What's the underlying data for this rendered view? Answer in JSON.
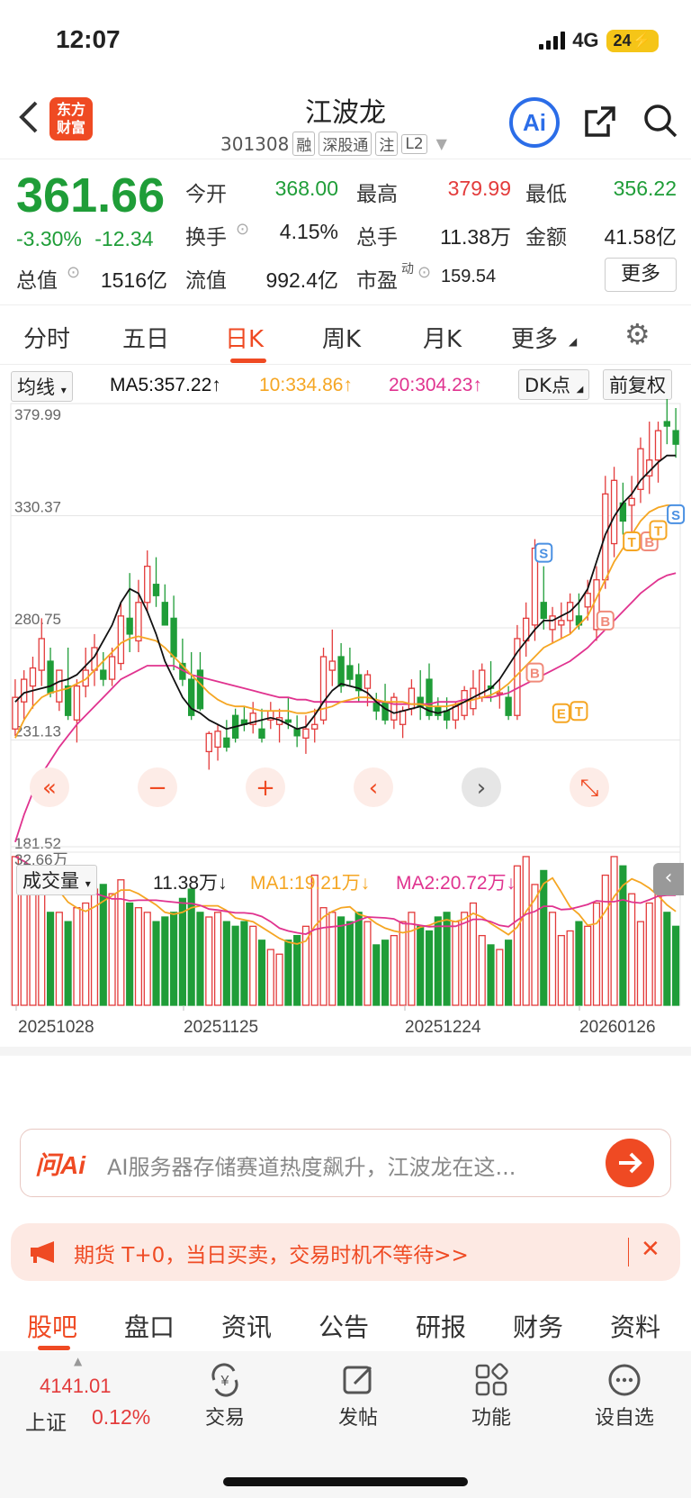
{
  "status": {
    "time": "12:07",
    "network": "4G",
    "battery": "24"
  },
  "header": {
    "logo_line1": "东方",
    "logo_line2": "财富",
    "stock_name": "江波龙",
    "stock_code": "301308",
    "tags": [
      "融",
      "深股通",
      "注",
      "L2"
    ],
    "ai_label": "Ai"
  },
  "quote": {
    "price": "361.66",
    "change_pct": "-3.30%",
    "change": "-12.34",
    "open_label": "今开",
    "open": "368.00",
    "high_label": "最高",
    "high": "379.99",
    "low_label": "最低",
    "low": "356.22",
    "turnover_label": "换手",
    "turnover": "4.15%",
    "volume_label": "总手",
    "volume": "11.38万",
    "amount_label": "金额",
    "amount": "41.58亿",
    "mktcap_label": "总值",
    "mktcap": "1516亿",
    "float_label": "流值",
    "float_cap": "992.4亿",
    "pe_label": "市盈",
    "pe_sup": "动",
    "pe": "159.54",
    "more_label": "更多"
  },
  "period_tabs": [
    "分时",
    "五日",
    "日K",
    "周K",
    "月K",
    "更多"
  ],
  "indicators": {
    "ma_select": "均线",
    "ma5": "MA5:357.22↑",
    "ma10": "10:334.86↑",
    "ma20": "20:304.23↑",
    "dk_select": "DK点",
    "adjust": "前复权",
    "vol_select": "成交量",
    "vol_value": "11.38万↓",
    "vma1": "MA1:19.21万↓",
    "vma2": "MA2:20.72万↓"
  },
  "colors": {
    "up": "#e33b3b",
    "down": "#1f9d38",
    "accent": "#ef4a23",
    "ma5": "#111111",
    "ma10": "#f5a623",
    "ma20": "#e0338f"
  },
  "chart_data": {
    "type": "candlestick",
    "price_axis_labels": [
      "379.99",
      "330.37",
      "280.75",
      "231.13",
      "181.52"
    ],
    "ylim": [
      181.52,
      379.99
    ],
    "x_labels": [
      "20251028",
      "20251125",
      "20251224",
      "20260126"
    ],
    "volume_max_label": "32.66万",
    "candles": [
      [
        236,
        258,
        233,
        250
      ],
      [
        248,
        262,
        240,
        258
      ],
      [
        255,
        268,
        245,
        263
      ],
      [
        262,
        285,
        255,
        276
      ],
      [
        266,
        272,
        250,
        252
      ],
      [
        248,
        262,
        244,
        262
      ],
      [
        255,
        272,
        240,
        242
      ],
      [
        240,
        258,
        230,
        255
      ],
      [
        255,
        272,
        250,
        262
      ],
      [
        262,
        278,
        255,
        272
      ],
      [
        262,
        270,
        255,
        258
      ],
      [
        258,
        272,
        255,
        268
      ],
      [
        265,
        292,
        262,
        286
      ],
      [
        285,
        305,
        270,
        278
      ],
      [
        275,
        302,
        270,
        292
      ],
      [
        292,
        315,
        288,
        308
      ],
      [
        300,
        312,
        290,
        295
      ],
      [
        292,
        300,
        282,
        282
      ],
      [
        285,
        295,
        262,
        268
      ],
      [
        265,
        276,
        255,
        258
      ],
      [
        258,
        270,
        240,
        242
      ],
      [
        262,
        270,
        244,
        245
      ],
      [
        226,
        235,
        218,
        234
      ],
      [
        228,
        238,
        222,
        235
      ],
      [
        232,
        240,
        226,
        228
      ],
      [
        242,
        245,
        230,
        232
      ],
      [
        240,
        246,
        235,
        238
      ],
      [
        238,
        248,
        234,
        243
      ],
      [
        236,
        245,
        230,
        232
      ],
      [
        240,
        248,
        236,
        244
      ],
      [
        238,
        245,
        230,
        241
      ],
      [
        240,
        250,
        236,
        239
      ],
      [
        236,
        242,
        228,
        233
      ],
      [
        232,
        242,
        225,
        236
      ],
      [
        236,
        245,
        230,
        238
      ],
      [
        240,
        272,
        238,
        268
      ],
      [
        262,
        280,
        255,
        266
      ],
      [
        268,
        274,
        252,
        255
      ],
      [
        264,
        272,
        255,
        258
      ],
      [
        260,
        265,
        248,
        253
      ],
      [
        254,
        262,
        246,
        260
      ],
      [
        248,
        252,
        240,
        244
      ],
      [
        248,
        256,
        238,
        240
      ],
      [
        240,
        252,
        236,
        250
      ],
      [
        238,
        246,
        232,
        244
      ],
      [
        245,
        258,
        242,
        254
      ],
      [
        250,
        262,
        240,
        246
      ],
      [
        258,
        265,
        240,
        242
      ],
      [
        246,
        250,
        240,
        242
      ],
      [
        244,
        250,
        236,
        240
      ],
      [
        240,
        248,
        236,
        246
      ],
      [
        242,
        255,
        240,
        253
      ],
      [
        245,
        262,
        242,
        254
      ],
      [
        250,
        265,
        248,
        262
      ],
      [
        255,
        266,
        248,
        254
      ],
      [
        252,
        258,
        245,
        252
      ],
      [
        250,
        255,
        240,
        242
      ],
      [
        242,
        282,
        240,
        276
      ],
      [
        275,
        292,
        268,
        285
      ],
      [
        282,
        320,
        275,
        316
      ],
      [
        292,
        308,
        280,
        285
      ],
      [
        280,
        290,
        274,
        286
      ],
      [
        282,
        292,
        276,
        284
      ],
      [
        284,
        296,
        278,
        292
      ],
      [
        286,
        296,
        280,
        282
      ],
      [
        290,
        302,
        284,
        296
      ],
      [
        280,
        308,
        275,
        302
      ],
      [
        302,
        348,
        298,
        340
      ],
      [
        318,
        352,
        312,
        346
      ],
      [
        336,
        345,
        322,
        328
      ],
      [
        335,
        348,
        320,
        338
      ],
      [
        342,
        365,
        336,
        360
      ],
      [
        348,
        372,
        340,
        355
      ],
      [
        355,
        372,
        345,
        368
      ],
      [
        372,
        382,
        362,
        370
      ],
      [
        368,
        378,
        356,
        362
      ]
    ],
    "volumes": [
      32,
      30,
      27,
      26,
      20,
      20,
      18,
      21,
      22,
      25,
      26,
      24,
      27,
      22,
      21,
      20,
      18,
      19,
      20,
      23,
      25,
      20,
      19,
      20,
      18,
      17,
      18,
      17,
      14,
      12,
      11,
      14,
      15,
      17,
      28,
      21,
      20,
      19,
      18,
      20,
      18,
      13,
      14,
      15,
      18,
      20,
      17,
      16,
      19,
      20,
      18,
      20,
      22,
      15,
      13,
      12,
      14,
      30,
      32,
      26,
      29,
      20,
      15,
      16,
      18,
      17,
      22,
      28,
      32,
      30,
      24,
      18,
      22,
      24,
      20,
      17
    ],
    "ma5": [
      248,
      252,
      253,
      254,
      255,
      257,
      258,
      260,
      264,
      268,
      275,
      282,
      292,
      298,
      296,
      288,
      278,
      266,
      258,
      250,
      245,
      243,
      240,
      238,
      236,
      237,
      238,
      239,
      240,
      241,
      240,
      238,
      236,
      237,
      242,
      248,
      253,
      256,
      255,
      254,
      252,
      248,
      245,
      243,
      244,
      245,
      246,
      244,
      243,
      244,
      246,
      248,
      250,
      252,
      254,
      258,
      264,
      270,
      275,
      280,
      284,
      284,
      286,
      288,
      292,
      298,
      310,
      322,
      330,
      336,
      340,
      346,
      350,
      354,
      357,
      357
    ],
    "ma10": [
      232,
      240,
      246,
      250,
      252,
      253,
      254,
      256,
      258,
      262,
      266,
      270,
      274,
      276,
      277,
      276,
      275,
      272,
      268,
      264,
      260,
      256,
      252,
      249,
      247,
      246,
      246,
      245,
      244,
      244,
      244,
      244,
      243,
      243,
      244,
      245,
      246,
      248,
      249,
      250,
      250,
      249,
      248,
      248,
      248,
      247,
      247,
      246,
      246,
      246,
      247,
      248,
      249,
      250,
      251,
      253,
      256,
      260,
      264,
      268,
      272,
      274,
      276,
      278,
      282,
      286,
      294,
      302,
      310,
      316,
      322,
      328,
      332,
      334,
      335,
      335
    ],
    "ma20": [
      186,
      198,
      208,
      216,
      222,
      228,
      233,
      238,
      242,
      246,
      250,
      254,
      258,
      260,
      262,
      264,
      264,
      264,
      264,
      262,
      260,
      259,
      258,
      257,
      256,
      255,
      254,
      253,
      252,
      251,
      250,
      250,
      249,
      249,
      248,
      248,
      248,
      248,
      248,
      248,
      248,
      248,
      248,
      247,
      247,
      247,
      247,
      247,
      248,
      248,
      248,
      249,
      249,
      250,
      250,
      251,
      252,
      254,
      256,
      258,
      260,
      262,
      264,
      266,
      269,
      272,
      276,
      280,
      284,
      288,
      292,
      296,
      299,
      302,
      304,
      305
    ],
    "signals": [
      {
        "label": "S",
        "i": 60,
        "price": 314
      },
      {
        "label": "B",
        "i": 59,
        "price": 261
      },
      {
        "label": "B",
        "i": 67,
        "price": 284
      },
      {
        "label": "T",
        "i": 64,
        "price": 244
      },
      {
        "label": "E",
        "i": 62,
        "price": 243
      },
      {
        "label": "T",
        "i": 70,
        "price": 319
      },
      {
        "label": "B",
        "i": 72,
        "price": 319
      },
      {
        "label": "T",
        "i": 73,
        "price": 324
      },
      {
        "label": "S",
        "i": 75,
        "price": 331
      }
    ]
  },
  "ai_bar": {
    "brand": "问Ai",
    "text": "AI服务器存储赛道热度飙升，江波龙在这..."
  },
  "promo": {
    "text": "期货 T+0，当日买卖，交易时机不等待>>"
  },
  "section_tabs": [
    "股吧",
    "盘口",
    "资讯",
    "公告",
    "研报",
    "财务",
    "资料"
  ],
  "bottom_nav": {
    "index_value": "4141.01",
    "index_name": "上证",
    "index_change": "0.12%",
    "items": [
      "交易",
      "发帖",
      "功能",
      "设自选"
    ]
  }
}
